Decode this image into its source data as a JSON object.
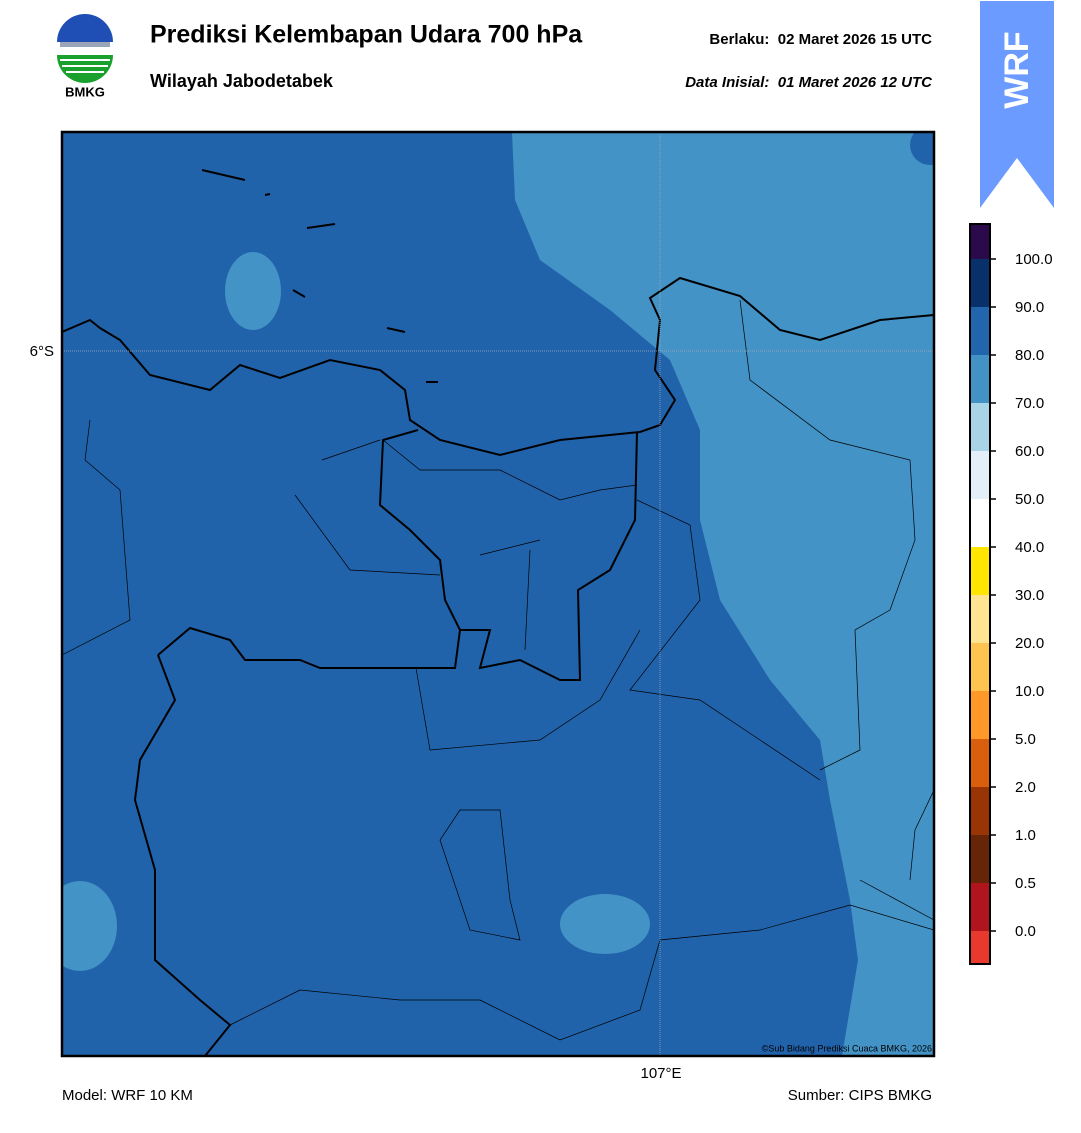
{
  "header": {
    "title": "Prediksi Kelembapan Udara 700 hPa",
    "subtitle": "Wilayah Jabodetabek",
    "valid": "Berlaku:  02 Maret 2026 15 UTC",
    "init": "Data Inisial:  01 Maret 2026 12 UTC",
    "logo_text": "BMKG",
    "model_badge": "WRF"
  },
  "map": {
    "lat_label": "6°S",
    "lon_label": "107°E",
    "copyright": "©Sub Bidang Prediksi Cuaca BMKG, 2026",
    "base_color": "#2163ab",
    "light_color": "#4393c6"
  },
  "colorbar": {
    "ticks": [
      {
        "value": 0,
        "label": "0.0"
      },
      {
        "value": 0.5,
        "label": "0.5"
      },
      {
        "value": 1,
        "label": "1.0"
      },
      {
        "value": 2,
        "label": "2.0"
      },
      {
        "value": 5,
        "label": "5.0"
      },
      {
        "value": 10,
        "label": "10.0"
      },
      {
        "value": 20,
        "label": "20.0"
      },
      {
        "value": 30,
        "label": "30.0"
      },
      {
        "value": 40,
        "label": "40.0"
      },
      {
        "value": 50,
        "label": "50.0"
      },
      {
        "value": 60,
        "label": "60.0"
      },
      {
        "value": 70,
        "label": "70.0"
      },
      {
        "value": 80,
        "label": "80.0"
      },
      {
        "value": 90,
        "label": "90.0"
      },
      {
        "value": 100,
        "label": "100.0"
      }
    ],
    "colors": [
      "#e8392e",
      "#b0141c",
      "#662506",
      "#993404",
      "#d95f0e",
      "#fe9929",
      "#fec44f",
      "#fee391",
      "#ffe500",
      "#ffffff",
      "#e4eef8",
      "#a8d4e6",
      "#4292c6",
      "#2166ac",
      "#08306b",
      "#2a0a4b"
    ]
  },
  "footer": {
    "model": "Model: WRF 10 KM",
    "source": "Sumber: CIPS BMKG"
  }
}
